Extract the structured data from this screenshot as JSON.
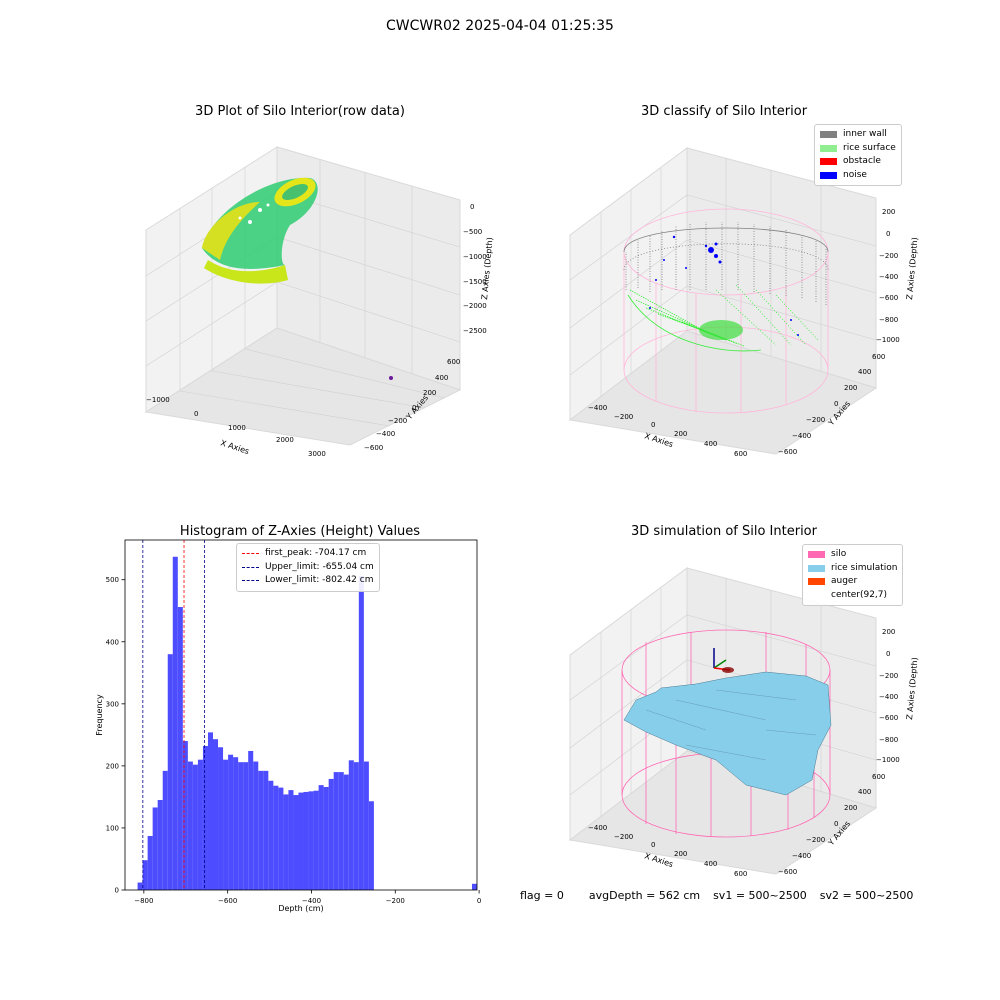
{
  "figure": {
    "suptitle": "CWCWR02 2025-04-04 01:25:35",
    "footer": {
      "flag": "flag = 0",
      "avg_depth": "avgDepth = 562 cm",
      "sv1": "sv1 = 500~2500",
      "sv2": "sv2 = 500~2500"
    }
  },
  "panels": {
    "raw": {
      "title": "3D Plot of Silo Interior(row data)",
      "xlabel": "X Axies",
      "ylabel": "Y Axies",
      "zlabel": "Z Axies (Depth)",
      "xticks": [
        "−1000",
        "0",
        "1000",
        "2000",
        "3000"
      ],
      "yticks": [
        "600",
        "400",
        "200",
        "0",
        "−200",
        "−400",
        "−600"
      ],
      "zticks": [
        "0",
        "−500",
        "−1000",
        "−1500",
        "−2000",
        "−2500"
      ]
    },
    "classify": {
      "title": "3D classify of Silo Interior",
      "xlabel": "X Axies",
      "ylabel": "Y Axies",
      "zlabel": "Z Axies (Depth)",
      "xticks": [
        "−400",
        "−200",
        "0",
        "200",
        "400",
        "600"
      ],
      "yticks": [
        "600",
        "400",
        "200",
        "0",
        "−200",
        "−400",
        "−600"
      ],
      "zticks": [
        "200",
        "0",
        "−200",
        "−400",
        "−600",
        "−800",
        "−1000"
      ],
      "legend": [
        {
          "label": "inner wall",
          "color": "#808080"
        },
        {
          "label": "rice surface",
          "color": "#90ee90"
        },
        {
          "label": "obstacle",
          "color": "#ff0000"
        },
        {
          "label": "noise",
          "color": "#0000ff"
        }
      ]
    },
    "simulation": {
      "title": "3D simulation of Silo Interior",
      "xlabel": "X Axies",
      "ylabel": "Y Axies",
      "zlabel": "Z Axies (Depth)",
      "xticks": [
        "−400",
        "−200",
        "0",
        "200",
        "400",
        "600"
      ],
      "yticks": [
        "600",
        "400",
        "200",
        "0",
        "−200",
        "−400",
        "−600"
      ],
      "zticks": [
        "200",
        "0",
        "−200",
        "−400",
        "−600",
        "−800",
        "−1000"
      ],
      "legend": [
        {
          "label": "silo",
          "color": "#ff69b4"
        },
        {
          "label": "rice simulation",
          "color": "#87ceeb"
        },
        {
          "label": "auger",
          "color": "#ff4500"
        },
        {
          "label": "center(92,7)",
          "color": "#ffffff"
        }
      ]
    }
  },
  "chart_data": {
    "type": "bar",
    "title": "Histogram of Z-Axies (Height) Values",
    "xlabel": "Depth (cm)",
    "ylabel": "Frequency",
    "xlim": [
      -845,
      -5
    ],
    "ylim": [
      0,
      564
    ],
    "xticks": [
      -800,
      -600,
      -400,
      -200,
      0
    ],
    "xtick_labels": [
      "−800",
      "−600",
      "−400",
      "−200",
      "0"
    ],
    "yticks": [
      0,
      100,
      200,
      300,
      400,
      500
    ],
    "bar_color": "#4d4dff",
    "bins": [
      {
        "x0": -815,
        "x1": -803,
        "count": 12
      },
      {
        "x0": -803,
        "x1": -791,
        "count": 48
      },
      {
        "x0": -791,
        "x1": -779,
        "count": 87
      },
      {
        "x0": -779,
        "x1": -767,
        "count": 133
      },
      {
        "x0": -767,
        "x1": -755,
        "count": 145
      },
      {
        "x0": -755,
        "x1": -743,
        "count": 192
      },
      {
        "x0": -743,
        "x1": -731,
        "count": 380
      },
      {
        "x0": -731,
        "x1": -719,
        "count": 537
      },
      {
        "x0": -719,
        "x1": -707,
        "count": 456
      },
      {
        "x0": -707,
        "x1": -695,
        "count": 240
      },
      {
        "x0": -695,
        "x1": -683,
        "count": 207
      },
      {
        "x0": -683,
        "x1": -671,
        "count": 202
      },
      {
        "x0": -671,
        "x1": -659,
        "count": 210
      },
      {
        "x0": -659,
        "x1": -647,
        "count": 232
      },
      {
        "x0": -647,
        "x1": -635,
        "count": 254
      },
      {
        "x0": -635,
        "x1": -623,
        "count": 243
      },
      {
        "x0": -623,
        "x1": -611,
        "count": 230
      },
      {
        "x0": -611,
        "x1": -599,
        "count": 210
      },
      {
        "x0": -599,
        "x1": -587,
        "count": 218
      },
      {
        "x0": -587,
        "x1": -575,
        "count": 214
      },
      {
        "x0": -575,
        "x1": -563,
        "count": 206
      },
      {
        "x0": -563,
        "x1": -551,
        "count": 206
      },
      {
        "x0": -551,
        "x1": -539,
        "count": 224
      },
      {
        "x0": -539,
        "x1": -527,
        "count": 207
      },
      {
        "x0": -527,
        "x1": -515,
        "count": 192
      },
      {
        "x0": -515,
        "x1": -503,
        "count": 192
      },
      {
        "x0": -503,
        "x1": -491,
        "count": 176
      },
      {
        "x0": -491,
        "x1": -479,
        "count": 168
      },
      {
        "x0": -479,
        "x1": -467,
        "count": 165
      },
      {
        "x0": -467,
        "x1": -455,
        "count": 154
      },
      {
        "x0": -455,
        "x1": -443,
        "count": 161
      },
      {
        "x0": -443,
        "x1": -431,
        "count": 153
      },
      {
        "x0": -431,
        "x1": -419,
        "count": 157
      },
      {
        "x0": -419,
        "x1": -407,
        "count": 158
      },
      {
        "x0": -407,
        "x1": -395,
        "count": 159
      },
      {
        "x0": -395,
        "x1": -383,
        "count": 160
      },
      {
        "x0": -383,
        "x1": -371,
        "count": 169
      },
      {
        "x0": -371,
        "x1": -359,
        "count": 166
      },
      {
        "x0": -359,
        "x1": -347,
        "count": 179
      },
      {
        "x0": -347,
        "x1": -335,
        "count": 190
      },
      {
        "x0": -335,
        "x1": -323,
        "count": 190
      },
      {
        "x0": -323,
        "x1": -311,
        "count": 186
      },
      {
        "x0": -311,
        "x1": -299,
        "count": 209
      },
      {
        "x0": -299,
        "x1": -287,
        "count": 206
      },
      {
        "x0": -287,
        "x1": -275,
        "count": 506
      },
      {
        "x0": -275,
        "x1": -263,
        "count": 207
      },
      {
        "x0": -263,
        "x1": -251,
        "count": 143
      },
      {
        "x0": -17,
        "x1": -5,
        "count": 10
      }
    ],
    "vlines": [
      {
        "label": "first_peak: -704.17 cm",
        "x": -704.17,
        "color": "#ff0000"
      },
      {
        "label": "Upper_limit: -655.04 cm",
        "x": -655.04,
        "color": "#00008b"
      },
      {
        "label": "Lower_limit: -802.42 cm",
        "x": -802.42,
        "color": "#00008b"
      }
    ]
  }
}
